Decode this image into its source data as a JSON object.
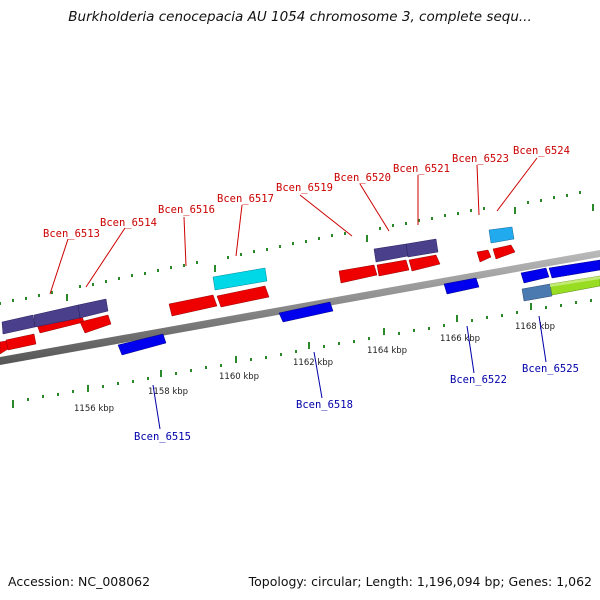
{
  "title": "Burkholderia cenocepacia AU 1054 chromosome 3, complete sequ...",
  "footer": {
    "accession": "Accession: NC_008062",
    "stats": "Topology: circular; Length: 1,196,094 bp; Genes: 1,062"
  },
  "scale": {
    "ticks": [
      "1156 kbp",
      "1158 kbp",
      "1160 kbp",
      "1162 kbp",
      "1164 kbp",
      "1166 kbp",
      "1168 kbp"
    ]
  },
  "genes": [
    {
      "label": "Bcen_6513",
      "strand": "forward",
      "color": "#cc0000"
    },
    {
      "label": "Bcen_6514",
      "strand": "forward",
      "color": "#cc0000"
    },
    {
      "label": "Bcen_6515",
      "strand": "reverse",
      "color": "#0000aa"
    },
    {
      "label": "Bcen_6516",
      "strand": "forward",
      "color": "#cc0000"
    },
    {
      "label": "Bcen_6517",
      "strand": "forward",
      "color": "#cc0000"
    },
    {
      "label": "Bcen_6518",
      "strand": "reverse",
      "color": "#0000aa"
    },
    {
      "label": "Bcen_6519",
      "strand": "forward",
      "color": "#cc0000"
    },
    {
      "label": "Bcen_6520",
      "strand": "forward",
      "color": "#cc0000"
    },
    {
      "label": "Bcen_6521",
      "strand": "forward",
      "color": "#cc0000"
    },
    {
      "label": "Bcen_6522",
      "strand": "reverse",
      "color": "#0000aa"
    },
    {
      "label": "Bcen_6523",
      "strand": "forward",
      "color": "#cc0000"
    },
    {
      "label": "Bcen_6524",
      "strand": "forward",
      "color": "#cc0000"
    },
    {
      "label": "Bcen_6525",
      "strand": "reverse",
      "color": "#0000aa"
    }
  ],
  "colors": {
    "forward_gene": "#ff0000",
    "reverse_gene": "#0000ee",
    "cog_purple": "#4a3f8a",
    "cog_cyan": "#00d8e8",
    "cog_skyblue": "#22aaee",
    "cog_steel": "#4a7ab0",
    "cog_lime": "#99dd22",
    "backbone": "#888888",
    "tick": "#2a8a2a"
  }
}
